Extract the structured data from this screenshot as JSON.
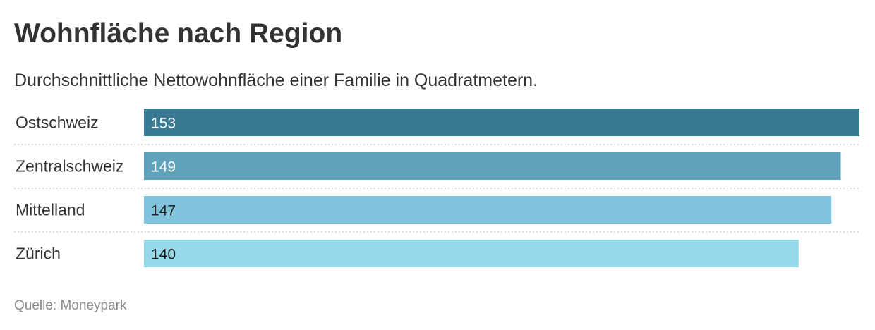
{
  "title": "Wohnfläche nach Region",
  "subtitle": "Durchschnittliche Nettowohnfläche einer Familie in Quadratmetern.",
  "source": "Quelle: Moneypark",
  "colors": {
    "bars": [
      "#377a92",
      "#5fa2ba",
      "#80c3dd",
      "#97d8ea"
    ],
    "label_dark_bg": "#ffffff",
    "label_light_bg": "#222222",
    "separator": "#cfcfcf"
  },
  "chart_data": {
    "type": "bar",
    "orientation": "horizontal",
    "categories": [
      "Ostschweiz",
      "Zentralschweiz",
      "Mittelland",
      "Zürich"
    ],
    "values": [
      153,
      149,
      147,
      140
    ],
    "xlim": [
      0,
      153
    ],
    "grid": false,
    "legend": "none"
  }
}
